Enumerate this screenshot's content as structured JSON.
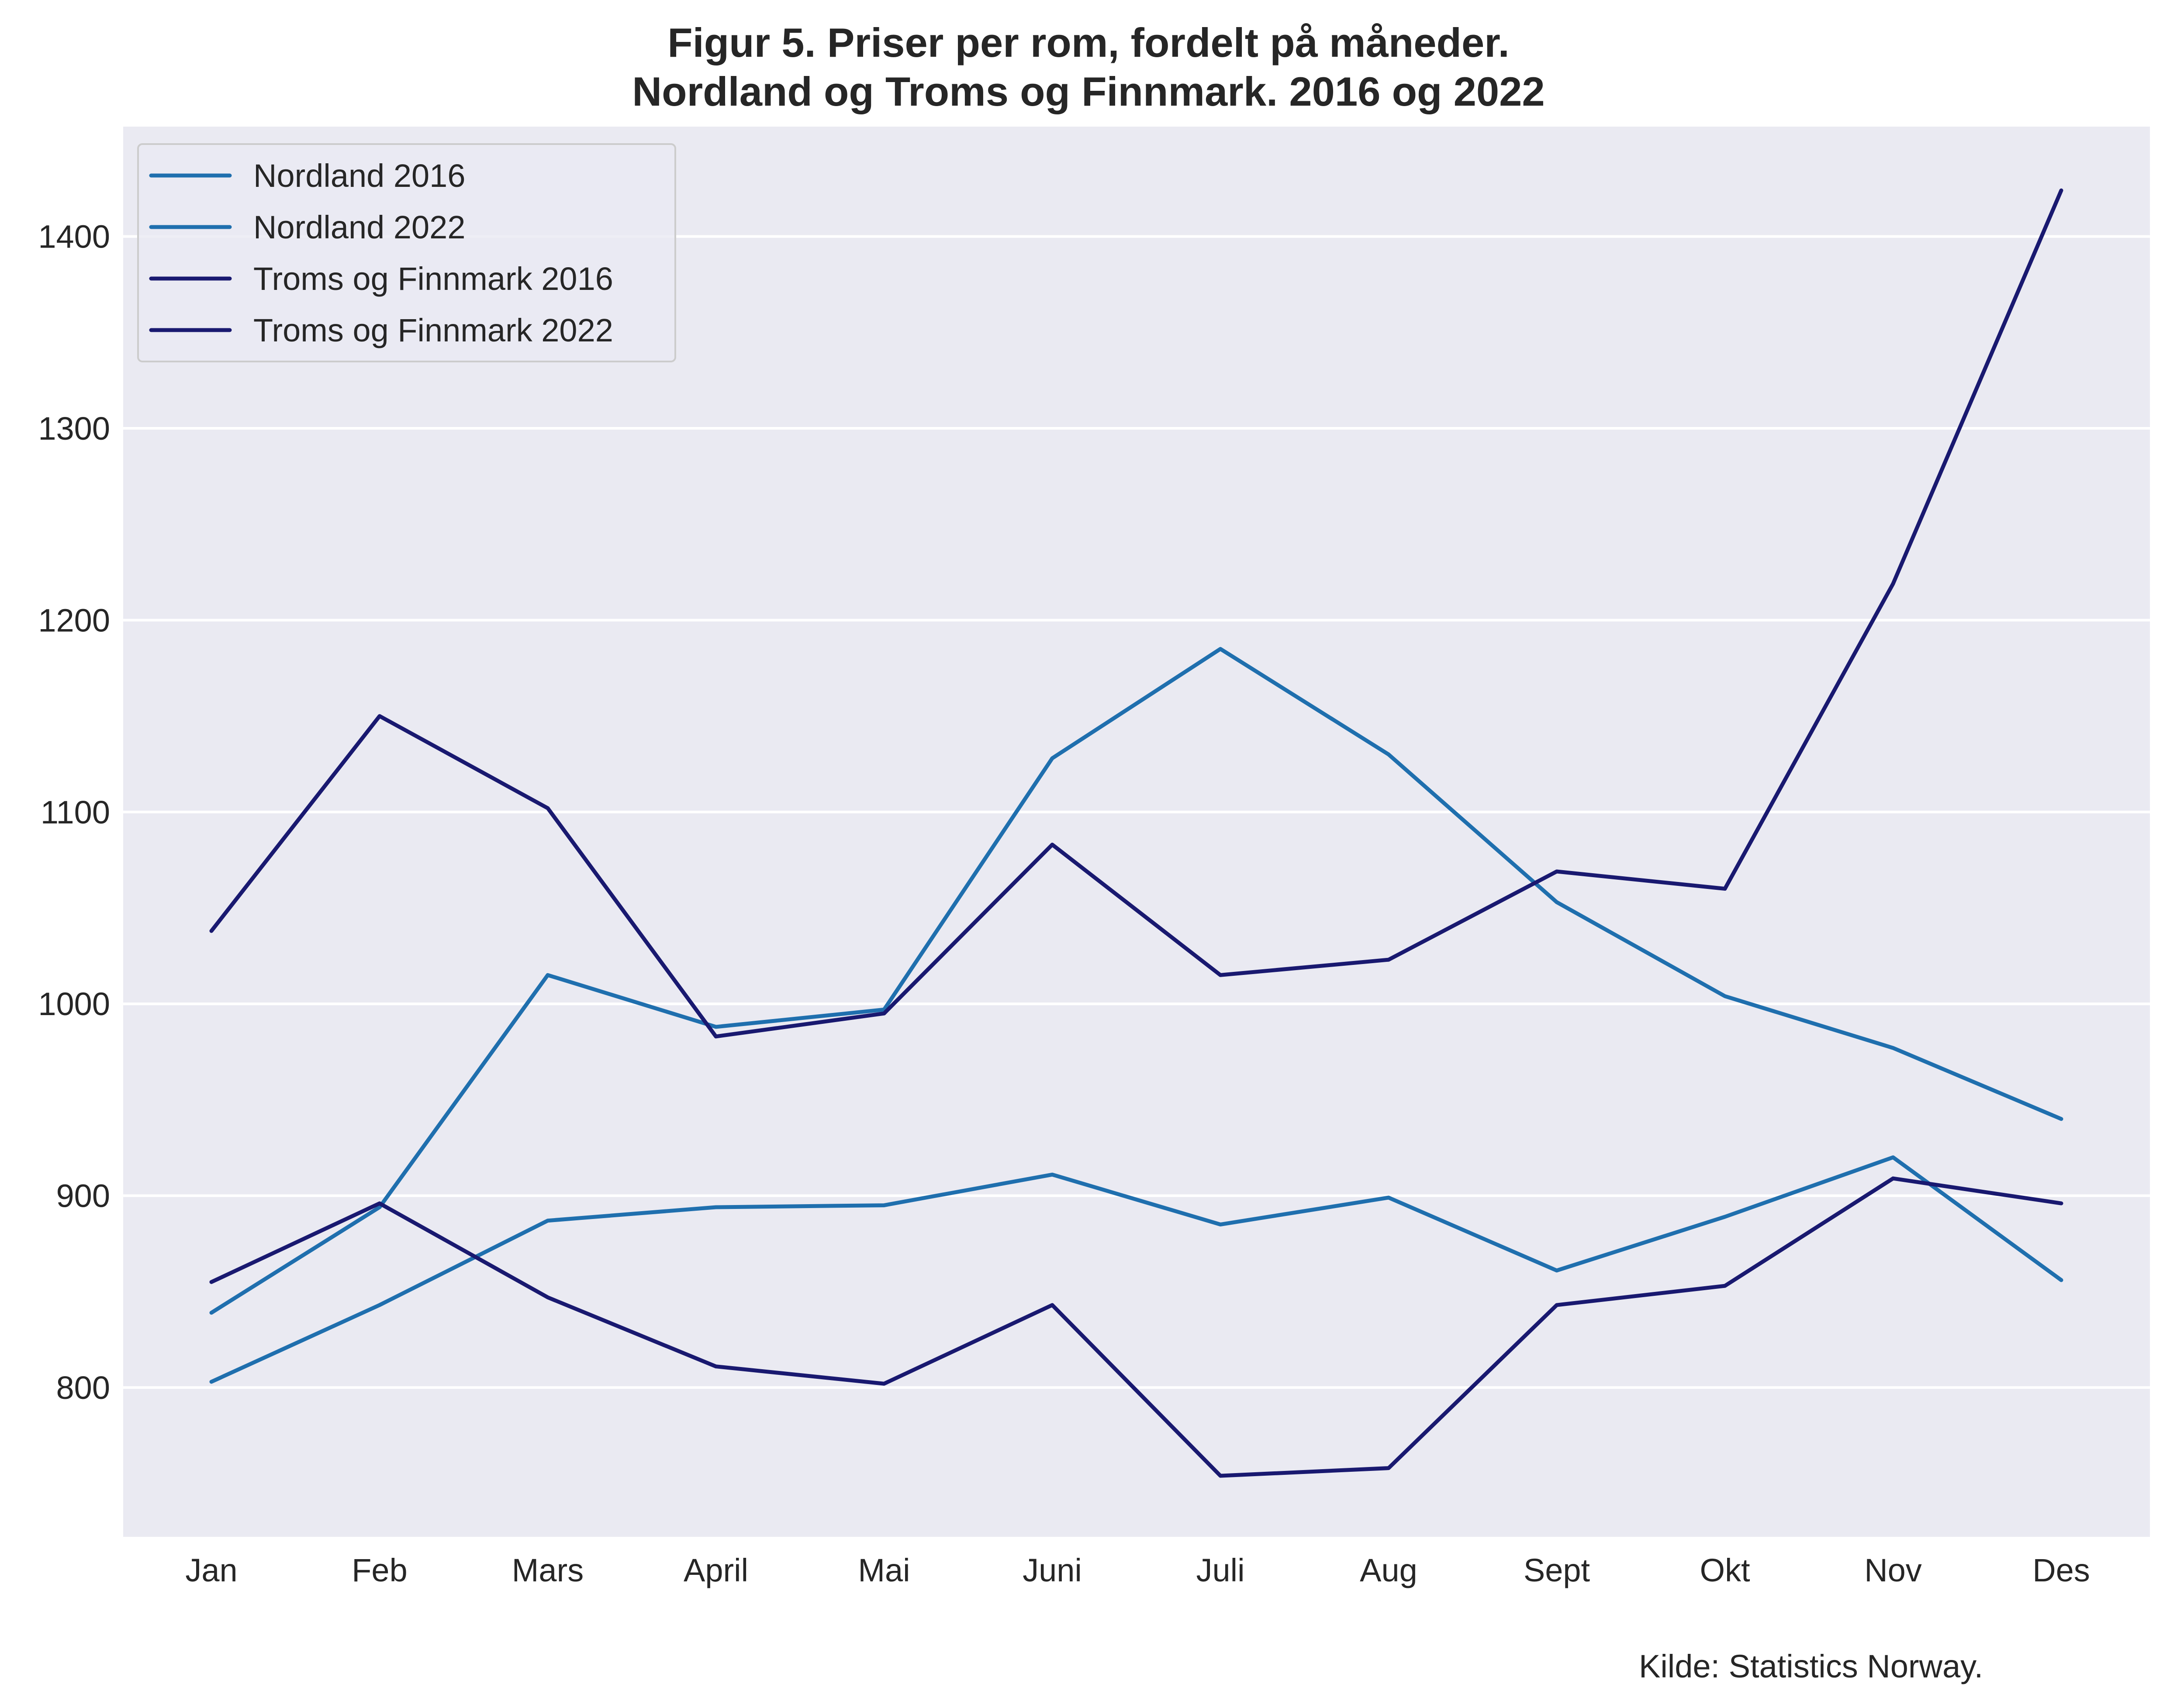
{
  "colors": {
    "plot_background": "#EAEAF2",
    "grid": "#FFFFFF",
    "nordland": "#1F6FAE",
    "troms_finnmark": "#191970",
    "legend_border": "#CCCCCC",
    "text": "#262626"
  },
  "chart_data": {
    "type": "line",
    "title": "Figur 5. Priser per rom, fordelt på måneder.",
    "subtitle": "Nordland og Troms og Finnmark. 2016 og 2022",
    "xlabel": "",
    "ylabel": "",
    "source": "Kilde: Statistics Norway.",
    "categories": [
      "Jan",
      "Feb",
      "Mars",
      "April",
      "Mai",
      "Juni",
      "Juli",
      "Aug",
      "Sept",
      "Okt",
      "Nov",
      "Des"
    ],
    "ylim": [
      720,
      1458
    ],
    "yticks": [
      800,
      900,
      1000,
      1100,
      1200,
      1300,
      1400
    ],
    "grid": "horizontal",
    "legend_position": "top-left",
    "series": [
      {
        "name": "Nordland 2016",
        "color": "#1F6FAE",
        "values": [
          803,
          843,
          887,
          894,
          895,
          911,
          885,
          899,
          861,
          889,
          920,
          856
        ]
      },
      {
        "name": "Nordland 2022",
        "color": "#1F6FAE",
        "values": [
          839,
          894,
          1015,
          988,
          997,
          1128,
          1185,
          1130,
          1053,
          1004,
          977,
          940
        ]
      },
      {
        "name": "Troms og Finnmark 2016",
        "color": "#191970",
        "values": [
          855,
          896,
          847,
          811,
          802,
          843,
          754,
          758,
          843,
          853,
          909,
          896
        ]
      },
      {
        "name": "Troms og Finnmark 2022",
        "color": "#191970",
        "values": [
          1038,
          1150,
          1102,
          983,
          995,
          1083,
          1015,
          1023,
          1069,
          1060,
          1219,
          1424
        ]
      }
    ]
  }
}
